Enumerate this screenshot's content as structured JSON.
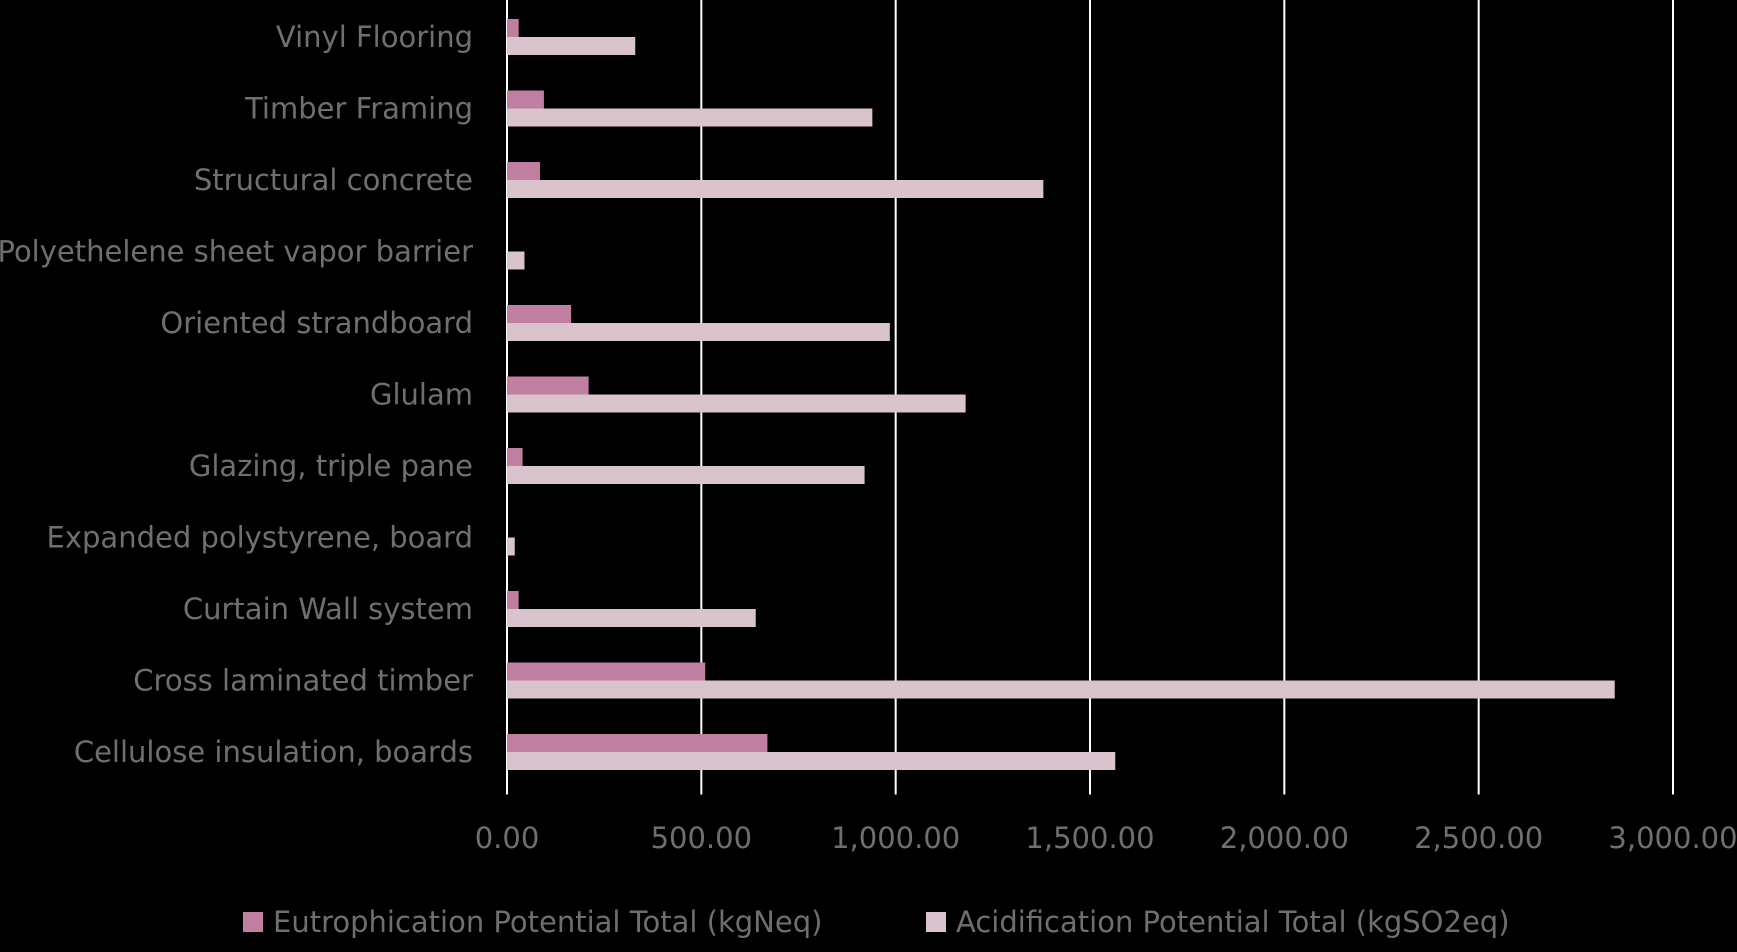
{
  "chart_data": {
    "type": "bar",
    "orientation": "horizontal",
    "categories": [
      "Vinyl Flooring",
      "Timber Framing",
      "Structural concrete",
      "Polyethelene sheet vapor barrier",
      "Oriented strandboard",
      "Glulam",
      "Glazing, triple pane",
      "Expanded polystyrene, board",
      "Curtain Wall system",
      "Cross laminated timber",
      "Cellulose insulation, boards"
    ],
    "series": [
      {
        "name": "Eutrophication Potential Total (kgNeq)",
        "color": "#c07fa0",
        "values": [
          30,
          95,
          85,
          0,
          165,
          210,
          40,
          0,
          30,
          510,
          670
        ]
      },
      {
        "name": "Acidification Potential Total (kgSO2eq)",
        "color": "#d9c3cc",
        "values": [
          330,
          940,
          1380,
          45,
          985,
          1180,
          920,
          20,
          640,
          2850,
          1565
        ]
      }
    ],
    "xlim": [
      0,
      3000
    ],
    "xticks": [
      0,
      500,
      1000,
      1500,
      2000,
      2500,
      3000
    ],
    "xtick_labels": [
      "0.00",
      "500.00",
      "1,000.00",
      "1,500.00",
      "2,000.00",
      "2,500.00",
      "3,000.00"
    ],
    "grid": true,
    "legend": "bottom",
    "title": "",
    "xlabel": "",
    "ylabel": ""
  }
}
